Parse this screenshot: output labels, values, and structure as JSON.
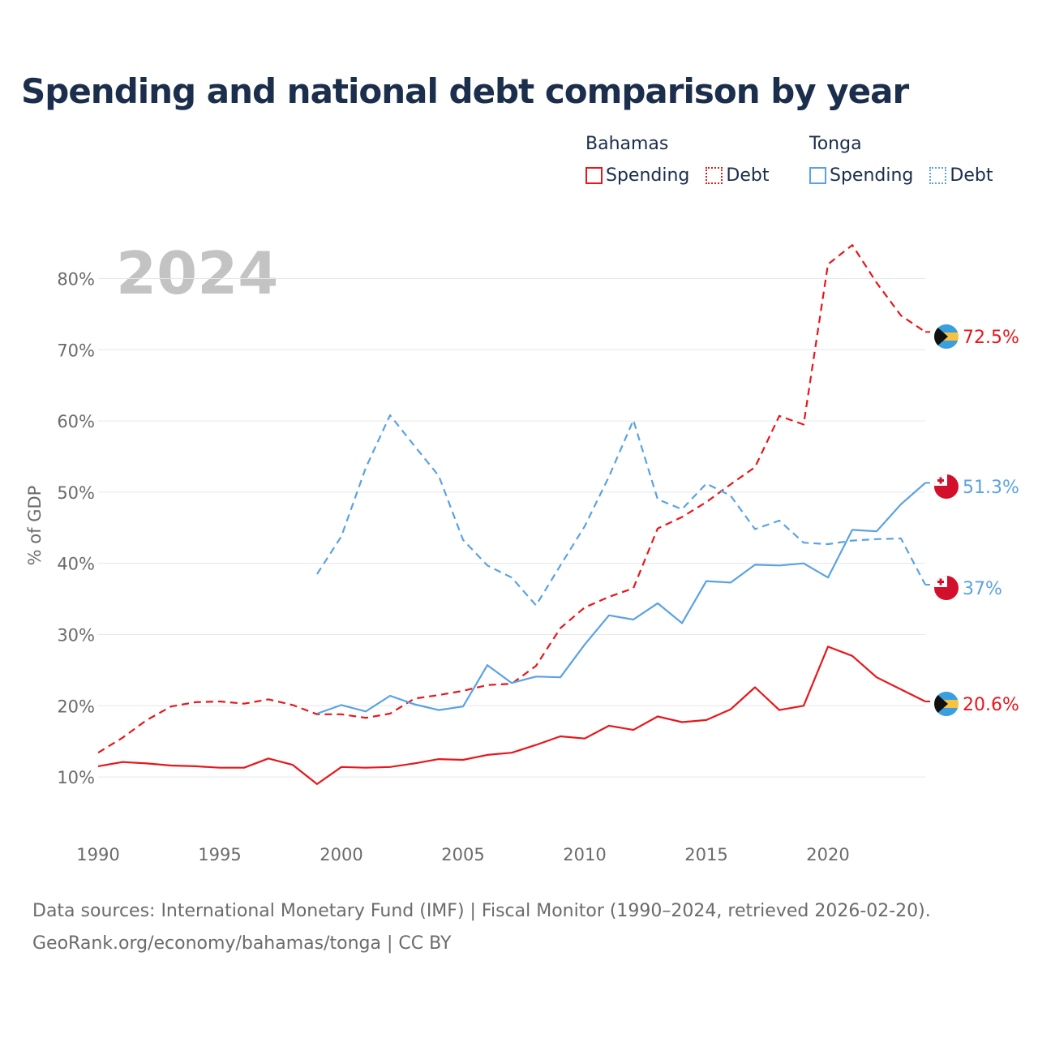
{
  "title": "Spending and national debt comparison by year",
  "legend": {
    "groups": [
      {
        "country": "Bahamas",
        "color": "#e8161b",
        "items": [
          {
            "label": "Spending",
            "style": "solid"
          },
          {
            "label": "Debt",
            "style": "dotted"
          }
        ]
      },
      {
        "country": "Tonga",
        "color": "#5aa2e3",
        "items": [
          {
            "label": "Spending",
            "style": "solid"
          },
          {
            "label": "Debt",
            "style": "dotted"
          }
        ]
      }
    ]
  },
  "year_stamp": "2024",
  "footer": {
    "line1": "Data sources: International Monetary Fund (IMF) | Fiscal Monitor (1990–2024, retrieved 2026-02-20).",
    "line2": "GeoRank.org/economy/bahamas/tonga | CC BY"
  },
  "chart_data": {
    "type": "line",
    "ylabel": "% of GDP",
    "xlabel": "",
    "xlim": [
      1990,
      2024
    ],
    "ylim": [
      5,
      87
    ],
    "x_ticks": [
      1990,
      1995,
      2000,
      2005,
      2010,
      2015,
      2020
    ],
    "y_ticks": [
      10,
      20,
      30,
      40,
      50,
      60,
      70,
      80
    ],
    "y_tick_labels": [
      "10%",
      "20%",
      "30%",
      "40%",
      "50%",
      "60%",
      "70%",
      "80%"
    ],
    "grid": true,
    "series": [
      {
        "name": "Bahamas Debt",
        "country": "Bahamas",
        "metric": "Debt",
        "color": "#e8161b",
        "dash": "dashed",
        "flag": "bahamas",
        "end_label": "72.5%",
        "x": [
          1990,
          1991,
          1992,
          1993,
          1994,
          1995,
          1996,
          1997,
          1998,
          1999,
          2000,
          2001,
          2002,
          2003,
          2004,
          2005,
          2006,
          2007,
          2008,
          2009,
          2010,
          2011,
          2012,
          2013,
          2014,
          2015,
          2016,
          2017,
          2018,
          2019,
          2020,
          2021,
          2022,
          2023,
          2024
        ],
        "values": [
          13.4,
          15.5,
          18.0,
          19.9,
          20.5,
          20.6,
          20.3,
          20.9,
          20.1,
          18.8,
          18.8,
          18.3,
          18.9,
          21.0,
          21.5,
          22.1,
          22.9,
          23.1,
          25.6,
          30.9,
          33.8,
          35.3,
          36.5,
          44.9,
          46.5,
          48.6,
          51.1,
          53.5,
          60.7,
          59.5,
          82.0,
          84.7,
          79.4,
          74.8,
          72.5
        ]
      },
      {
        "name": "Tonga Spending",
        "country": "Tonga",
        "metric": "Spending",
        "color": "#5aa2e3",
        "dash": "solid",
        "flag": "tonga",
        "end_label": "51.3%",
        "x": [
          1999,
          2000,
          2001,
          2002,
          2003,
          2004,
          2005,
          2006,
          2007,
          2008,
          2009,
          2010,
          2011,
          2012,
          2013,
          2014,
          2015,
          2016,
          2017,
          2018,
          2019,
          2020,
          2021,
          2022,
          2023,
          2024
        ],
        "values": [
          18.9,
          20.1,
          19.2,
          21.4,
          20.2,
          19.4,
          19.9,
          25.7,
          23.2,
          24.1,
          24.0,
          28.6,
          32.7,
          32.1,
          34.4,
          31.6,
          37.5,
          37.3,
          39.8,
          39.7,
          40.0,
          38.0,
          44.7,
          44.5,
          48.3,
          51.3
        ]
      },
      {
        "name": "Tonga Debt",
        "country": "Tonga",
        "metric": "Debt",
        "color": "#5aa2e3",
        "dash": "dashed",
        "flag": "tonga",
        "end_label": "37%",
        "x": [
          1999,
          2000,
          2001,
          2002,
          2003,
          2004,
          2005,
          2006,
          2007,
          2008,
          2009,
          2010,
          2011,
          2012,
          2013,
          2014,
          2015,
          2016,
          2017,
          2018,
          2019,
          2020,
          2021,
          2022,
          2023,
          2024
        ],
        "values": [
          38.5,
          43.8,
          53.4,
          60.8,
          56.5,
          52.3,
          43.3,
          39.7,
          38.0,
          34.1,
          39.7,
          45.2,
          52.2,
          60.1,
          49.0,
          47.6,
          51.2,
          49.5,
          44.8,
          46.0,
          42.9,
          42.7,
          43.2,
          43.4,
          43.5,
          37.0
        ]
      },
      {
        "name": "Bahamas Spending",
        "country": "Bahamas",
        "metric": "Spending",
        "color": "#e8161b",
        "dash": "solid",
        "flag": "bahamas",
        "end_label": "20.6%",
        "x": [
          1990,
          1991,
          1992,
          1993,
          1994,
          1995,
          1996,
          1997,
          1998,
          1999,
          2000,
          2001,
          2002,
          2003,
          2004,
          2005,
          2006,
          2007,
          2008,
          2009,
          2010,
          2011,
          2012,
          2013,
          2014,
          2015,
          2016,
          2017,
          2018,
          2019,
          2020,
          2021,
          2022,
          2023,
          2024
        ],
        "values": [
          11.5,
          12.1,
          11.9,
          11.6,
          11.5,
          11.3,
          11.3,
          12.6,
          11.7,
          9.0,
          11.4,
          11.3,
          11.4,
          11.9,
          12.5,
          12.4,
          13.1,
          13.4,
          14.5,
          15.7,
          15.4,
          17.2,
          16.6,
          18.5,
          17.7,
          18.0,
          19.5,
          22.6,
          19.4,
          20.0,
          28.3,
          27.0,
          24.0,
          22.3,
          20.6
        ]
      }
    ]
  }
}
